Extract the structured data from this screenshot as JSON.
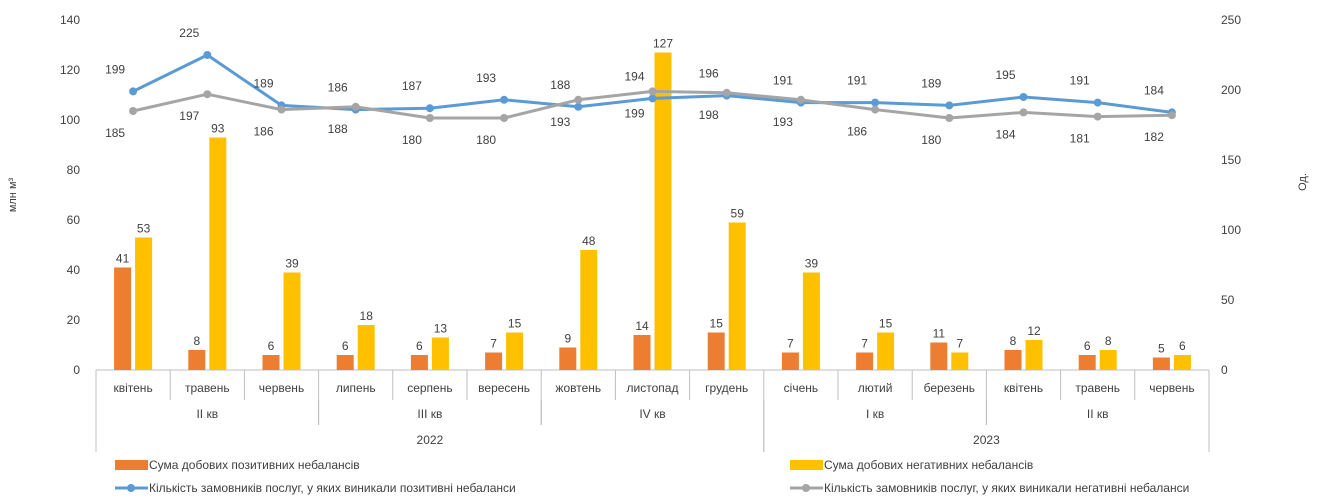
{
  "chart_data": {
    "type": "bar+line",
    "months": [
      "квітень",
      "травень",
      "червень",
      "липень",
      "серпень",
      "вересень",
      "жовтень",
      "листопад",
      "грудень",
      "січень",
      "лютий",
      "березень",
      "квітень",
      "травень",
      "червень"
    ],
    "quarters": [
      {
        "label": "II кв",
        "start": 0,
        "end": 2
      },
      {
        "label": "III кв",
        "start": 3,
        "end": 5
      },
      {
        "label": "IV кв",
        "start": 6,
        "end": 8
      },
      {
        "label": "I кв",
        "start": 9,
        "end": 11
      },
      {
        "label": "II кв",
        "start": 12,
        "end": 14
      }
    ],
    "years": [
      {
        "label": "2022",
        "start": 0,
        "end": 8
      },
      {
        "label": "2023",
        "start": 9,
        "end": 14
      }
    ],
    "y_left": {
      "label": "млн м³",
      "min": 0,
      "max": 140,
      "ticks": [
        0,
        20,
        40,
        60,
        80,
        100,
        120,
        140
      ]
    },
    "y_right": {
      "label": "Од.",
      "min": 0,
      "max": 250,
      "ticks": [
        0,
        50,
        100,
        150,
        200,
        250
      ]
    },
    "bar_series": [
      {
        "name": "Сума добових позитивних небалансів",
        "color": "#ED7D31",
        "values": [
          41,
          8,
          6,
          6,
          6,
          7,
          9,
          14,
          15,
          7,
          7,
          11,
          8,
          6,
          5
        ]
      },
      {
        "name": "Сума добових негативних небалансів",
        "color": "#FFC000",
        "values": [
          53,
          93,
          39,
          18,
          13,
          15,
          48,
          127,
          59,
          39,
          15,
          7,
          12,
          8,
          6
        ]
      }
    ],
    "line_series": [
      {
        "name": "Кількість замовників послуг, у яких виникали позитивні небаланси",
        "color": "#5B9BD5",
        "values": [
          199,
          225,
          189,
          186,
          187,
          193,
          188,
          194,
          196,
          191,
          191,
          189,
          195,
          191,
          184
        ]
      },
      {
        "name": "Кількість замовників послуг, у яких виникали негативні небаланси",
        "color": "#A5A5A5",
        "values": [
          185,
          197,
          186,
          188,
          180,
          180,
          193,
          199,
          198,
          193,
          186,
          180,
          184,
          181,
          182
        ]
      }
    ],
    "grid": false,
    "legend_position": "bottom"
  }
}
